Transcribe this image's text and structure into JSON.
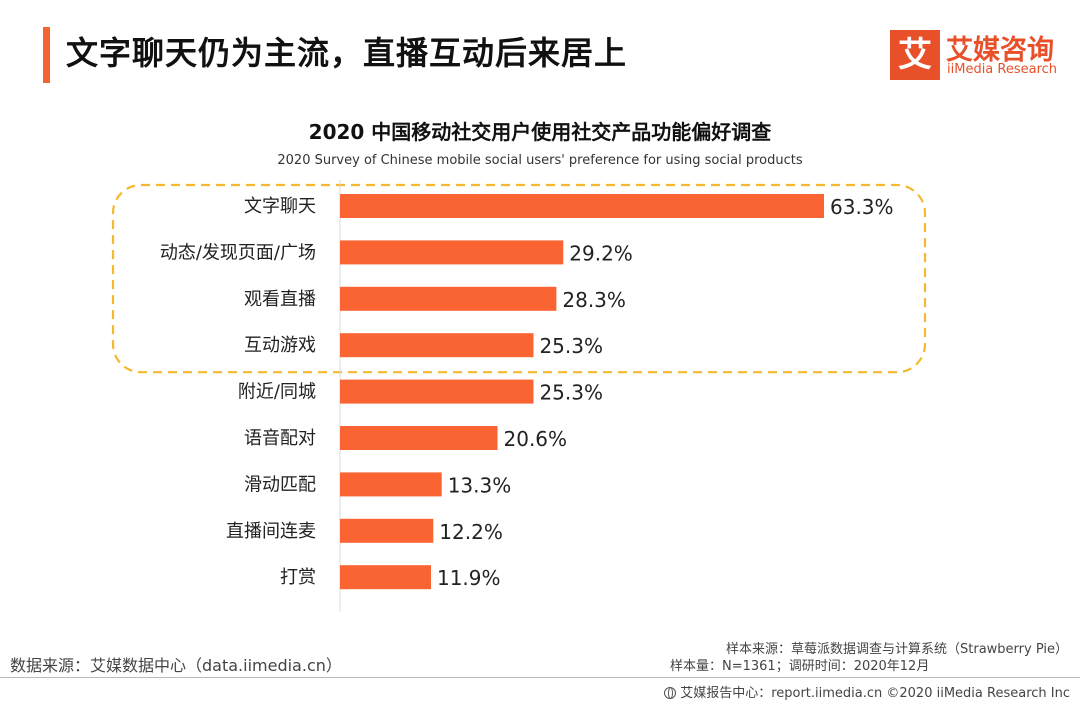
{
  "header": {
    "title": "文字聊天仍为主流，直播互动后来居上"
  },
  "logo": {
    "mark": "艾",
    "name_cn": "艾媒咨询",
    "name_en": "iiMedia Research"
  },
  "colors": {
    "accent": "#f26432",
    "bar": "#fa6332",
    "highlight_border": "#f5b82e"
  },
  "chart_data": {
    "type": "bar",
    "orientation": "horizontal",
    "title": "2020 中国移动社交用户使用社交产品功能偏好调查",
    "subtitle": "2020 Survey of Chinese mobile social users' preference for using social products",
    "categories": [
      "文字聊天",
      "动态/发现页面/广场",
      "观看直播",
      "互动游戏",
      "附近/同城",
      "语音配对",
      "滑动匹配",
      "直播间连麦",
      "打赏"
    ],
    "values": [
      63.3,
      29.2,
      28.3,
      25.3,
      25.3,
      20.6,
      13.3,
      12.2,
      11.9
    ],
    "value_labels": [
      "63.3%",
      "29.2%",
      "28.3%",
      "25.3%",
      "25.3%",
      "20.6%",
      "13.3%",
      "12.2%",
      "11.9%"
    ],
    "unit": "%",
    "highlighted_categories": [
      "文字聊天",
      "动态/发现页面/广场",
      "观看直播",
      "互动游戏"
    ],
    "xlim": [
      0,
      63.3
    ]
  },
  "source": {
    "data_source": "数据来源：艾媒数据中心（data.iimedia.cn）",
    "sample_source": "样本来源：草莓派数据调查与计算系统（Strawberry Pie）",
    "sample_info": "样本量：N=1361；调研时间：2020年12月"
  },
  "footer": {
    "text": "艾媒报告中心：report.iimedia.cn  ©2020  iiMedia Research Inc"
  }
}
